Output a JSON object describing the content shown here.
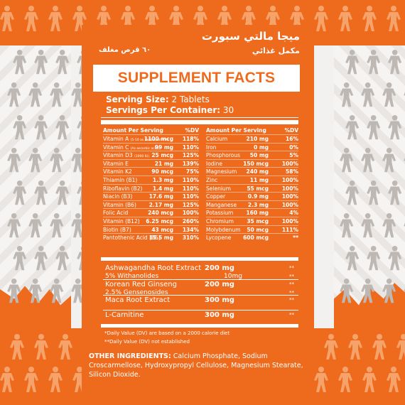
{
  "arabic": {
    "title": "ميجا مالتي سبورت",
    "subtitle": "مكمل غذائي",
    "count": "٦٠ قرص مغلف"
  },
  "header": "SUPPLEMENT FACTS",
  "serving": {
    "size_label": "Serving Size:",
    "size_value": "2 Tablets",
    "per_container_label": "Servings Per Container:",
    "per_container_value": "30"
  },
  "left_head": {
    "label": "Amount Per Serving",
    "dv": "%DV"
  },
  "right_head": {
    "label": "Amount Per Serving",
    "dv": "%DV"
  },
  "left_rows": [
    {
      "name": "Vitamin A",
      "note": "(5-10 as Beta-carotene)",
      "amount": "1100 mcg",
      "dv": "118%"
    },
    {
      "name": "Vitamin C",
      "note": "(As ascorbic acid)",
      "amount": "99 mg",
      "dv": "110%"
    },
    {
      "name": "Vitamin D3",
      "note": "(1000 IU)",
      "amount": "25 mcg",
      "dv": "125%"
    },
    {
      "name": "Vitamin E",
      "note": "",
      "amount": "21 mg",
      "dv": "139%"
    },
    {
      "name": "Vitamin K2",
      "note": "",
      "amount": "90 mcg",
      "dv": "75%"
    },
    {
      "name": "Thiamin (B1)",
      "note": "",
      "amount": "1.3 mg",
      "dv": "110%"
    },
    {
      "name": "Riboflavin (B2)",
      "note": "",
      "amount": "1.4 mg",
      "dv": "110%"
    },
    {
      "name": "Niacin (B3)",
      "note": "",
      "amount": "17.6 mg",
      "dv": "110%"
    },
    {
      "name": "Vitamin (B6)",
      "note": "",
      "amount": "2.17 mg",
      "dv": "125%"
    },
    {
      "name": "Folic Acid",
      "note": "",
      "amount": "240 mcg",
      "dv": "100%"
    },
    {
      "name": "Vitamin (B12)",
      "note": "",
      "amount": "6.25 mcg",
      "dv": "260%"
    },
    {
      "name": "Biotin (B7)",
      "note": "",
      "amount": "43 mcg",
      "dv": "134%"
    },
    {
      "name": "Pantothenic Acid (B5)",
      "note": "",
      "amount": "15.5 mg",
      "dv": "310%"
    }
  ],
  "right_rows": [
    {
      "name": "Calcium",
      "amount": "210 mg",
      "dv": "16%"
    },
    {
      "name": "Iron",
      "amount": "0 mg",
      "dv": "0%"
    },
    {
      "name": "Phosphorous",
      "amount": "50 mg",
      "dv": "5%"
    },
    {
      "name": "Iodine",
      "amount": "150 mcg",
      "dv": "100%"
    },
    {
      "name": "Magnesium",
      "amount": "240 mg",
      "dv": "58%"
    },
    {
      "name": "Zinc",
      "amount": "11 mg",
      "dv": "100%"
    },
    {
      "name": "Selenium",
      "amount": "55 mcg",
      "dv": "100%"
    },
    {
      "name": "Copper",
      "amount": "0.9 mg",
      "dv": "100%"
    },
    {
      "name": "Manganese",
      "amount": "2.3 mg",
      "dv": "100%"
    },
    {
      "name": "Potassium",
      "amount": "160 mg",
      "dv": "4%"
    },
    {
      "name": "Chromium",
      "amount": "35 mcg",
      "dv": "100%"
    },
    {
      "name": "Molybdenum",
      "amount": "50 mcg",
      "dv": "111%"
    },
    {
      "name": "Lycopene",
      "amount": "600 mcg",
      "dv": "**"
    }
  ],
  "herbs": [
    {
      "name": "Ashwagandha Root Extract",
      "sub": "5% Withanolides",
      "amount": "200 mg",
      "sub_amount": "10mg",
      "dv": "**",
      "sub_dv": "**"
    },
    {
      "name": "Korean Red Ginseng",
      "sub": "2.5% Gensenosides",
      "amount": "200 mg",
      "sub_amount": "",
      "dv": "**",
      "sub_dv": "**"
    },
    {
      "name": "Maca Root Extract",
      "sub": "",
      "amount": "300 mg",
      "sub_amount": "",
      "dv": "**",
      "sub_dv": ""
    },
    {
      "name": "L-Carnitine",
      "sub": "",
      "amount": "300 mg",
      "sub_amount": "",
      "dv": "**",
      "sub_dv": ""
    }
  ],
  "footnotes": [
    "*Daily Value (DV) are based on a 2000 calorie diet",
    "**Daily Value (DV) not established"
  ],
  "other": {
    "label": "OTHER INGREDIENTS:",
    "text": "Calcium Phosphate, Sodium Croscarmellose, Hydroxypropyl Cellulose, Magnesium Stearate, Silicon Dioxide."
  },
  "colors": {
    "brand": "#ee6b1e",
    "text": "#ffffff",
    "background": "#f3f1ef"
  }
}
